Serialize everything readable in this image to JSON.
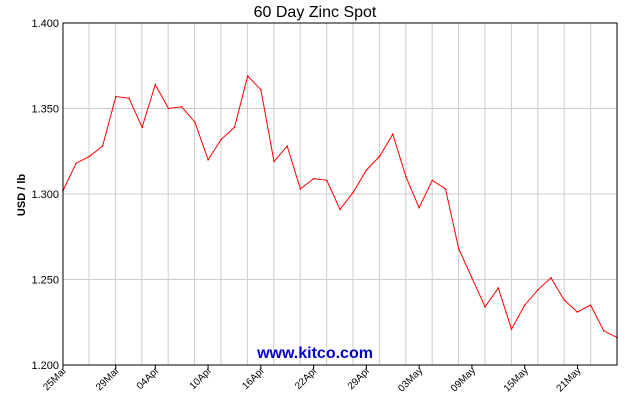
{
  "chart_data": {
    "type": "line",
    "title": "60 Day Zinc Spot",
    "xlabel": "",
    "ylabel": "USD / lb",
    "ylim": [
      1.2,
      1.4
    ],
    "yticks": [
      "1.200",
      "1.250",
      "1.300",
      "1.350",
      "1.400"
    ],
    "x_tick_labels": [
      "25Mar",
      "29Mar",
      "04Apr",
      "10Apr",
      "16Apr",
      "22Apr",
      "29Apr",
      "03May",
      "09May",
      "15May",
      "21May"
    ],
    "grid": true,
    "series": [
      {
        "color": "#ff0000",
        "values": [
          1.302,
          1.318,
          1.322,
          1.328,
          1.357,
          1.356,
          1.339,
          1.364,
          1.35,
          1.351,
          1.342,
          1.32,
          1.332,
          1.339,
          1.369,
          1.361,
          1.319,
          1.328,
          1.303,
          1.309,
          1.308,
          1.291,
          1.301,
          1.314,
          1.322,
          1.335,
          1.31,
          1.292,
          1.308,
          1.303,
          1.268,
          1.251,
          1.234,
          1.245,
          1.221,
          1.235,
          1.244,
          1.251,
          1.238,
          1.231,
          1.235,
          1.22,
          1.216
        ]
      }
    ]
  },
  "watermark": "www.kitco.com",
  "colors": {
    "line": "#ff0000",
    "grid": "#cccccc",
    "axis": "#000000",
    "watermark": "#0000cc"
  }
}
